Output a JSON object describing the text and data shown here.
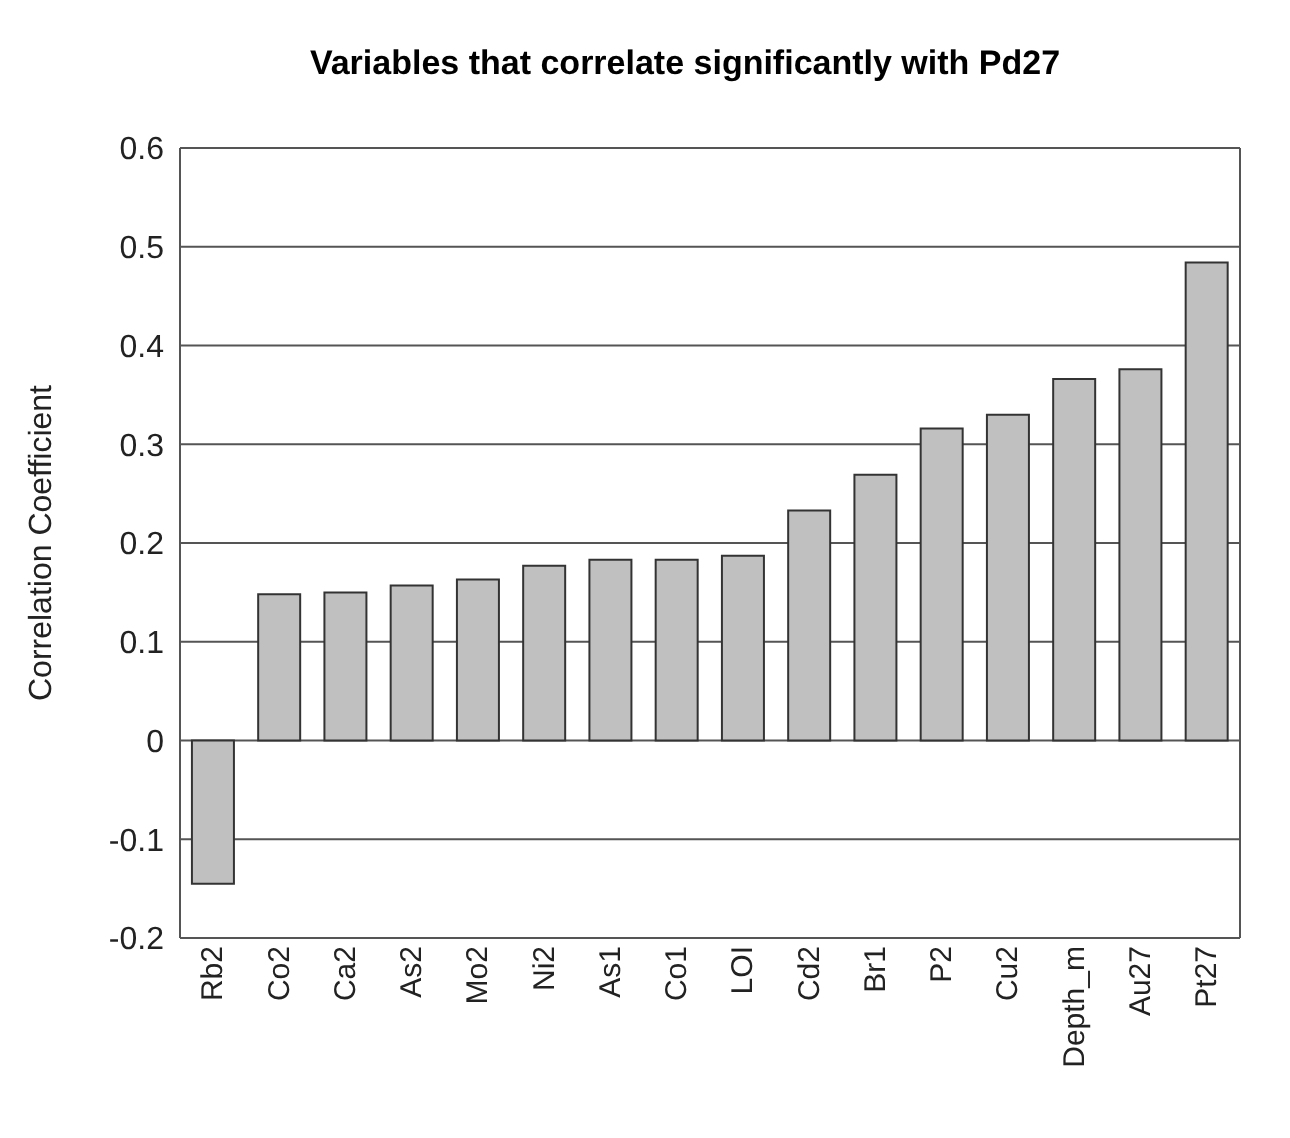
{
  "chart_data": {
    "type": "bar",
    "title": "Variables that correlate significantly with Pd27",
    "ylabel": "Correlation Coefficient",
    "categories": [
      "Rb2",
      "Co2",
      "Ca2",
      "As2",
      "Mo2",
      "Ni2",
      "As1",
      "Co1",
      "LOI",
      "Cd2",
      "Br1",
      "P2",
      "Cu2",
      "Depth_m",
      "Au27",
      "Pt27"
    ],
    "values": [
      -0.145,
      0.148,
      0.15,
      0.157,
      0.163,
      0.177,
      0.183,
      0.183,
      0.187,
      0.233,
      0.269,
      0.316,
      0.33,
      0.366,
      0.376,
      0.484
    ],
    "color": "#c0c0c0",
    "ylim": [
      -0.2,
      0.6
    ],
    "yticks": [
      -0.2,
      -0.1,
      0,
      0.1,
      0.2,
      0.3,
      0.4,
      0.5,
      0.6
    ],
    "grid": "y"
  }
}
